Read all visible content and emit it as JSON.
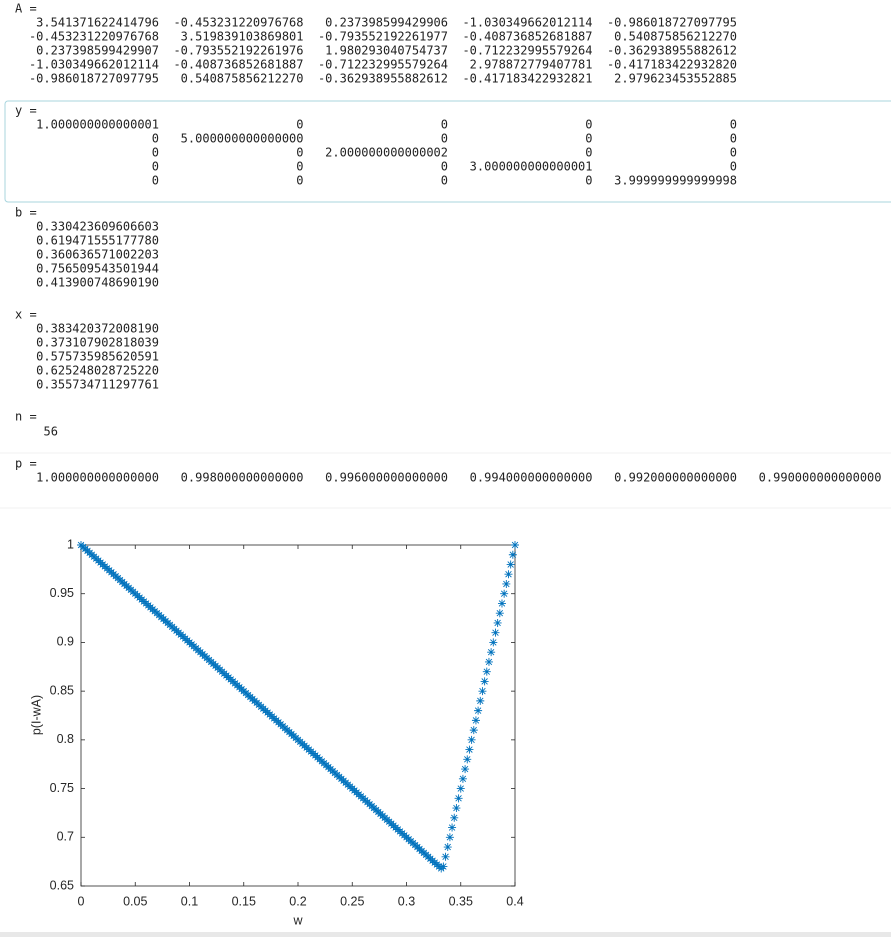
{
  "outputs": [
    {
      "label": "A =",
      "rows": [
        [
          "3.541371622414796",
          "-0.453231220976768",
          "0.237398599429906",
          "-1.030349662012114",
          "-0.986018727097795"
        ],
        [
          "-0.453231220976768",
          "3.519839103869801",
          "-0.793552192261977",
          "-0.408736852681887",
          "0.540875856212270"
        ],
        [
          "0.237398599429907",
          "-0.793552192261976",
          "1.980293040754737",
          "-0.712232995579264",
          "-0.362938955882612"
        ],
        [
          "-1.030349662012114",
          "-0.408736852681887",
          "-0.712232995579264",
          "2.978872779407781",
          "-0.417183422932820"
        ],
        [
          "-0.986018727097795",
          "0.540875856212270",
          "-0.362938955882612",
          "-0.417183422932821",
          "2.979623453552885"
        ]
      ]
    },
    {
      "label": "y =",
      "rows": [
        [
          "1.000000000000001",
          "0",
          "0",
          "0",
          "0"
        ],
        [
          "0",
          "5.000000000000000",
          "0",
          "0",
          "0"
        ],
        [
          "0",
          "0",
          "2.000000000000002",
          "0",
          "0"
        ],
        [
          "0",
          "0",
          "0",
          "3.000000000000001",
          "0"
        ],
        [
          "0",
          "0",
          "0",
          "0",
          "3.999999999999998"
        ]
      ]
    },
    {
      "label": "b =",
      "rows": [
        [
          "0.330423609606603"
        ],
        [
          "0.619471555177780"
        ],
        [
          "0.360636571002203"
        ],
        [
          "0.756509543501944"
        ],
        [
          "0.413900748690190"
        ]
      ]
    },
    {
      "label": "x =",
      "rows": [
        [
          "0.383420372008190"
        ],
        [
          "0.373107902818039"
        ],
        [
          "0.575735985620591"
        ],
        [
          "0.625248028725220"
        ],
        [
          "0.355734711297761"
        ]
      ]
    },
    {
      "label": "n =",
      "rows": [
        [
          "56"
        ]
      ]
    },
    {
      "label": "p =",
      "rows": [
        [
          "1.000000000000000",
          "0.998000000000000",
          "0.996000000000000",
          "0.994000000000000",
          "0.992000000000000",
          "0.990000000000000"
        ]
      ]
    }
  ],
  "chart_data": {
    "type": "scatter",
    "x_label": "w",
    "y_label": "p(I-wA)",
    "color": "#0072bd",
    "xlim": [
      0,
      0.4
    ],
    "xticks": [
      0,
      0.05,
      0.1,
      0.15,
      0.2,
      0.25,
      0.3,
      0.35,
      0.4
    ],
    "ylim": [
      0.65,
      1
    ],
    "yticks": [
      0.65,
      0.7,
      0.75,
      0.8,
      0.85,
      0.9,
      0.95,
      1
    ],
    "x": [
      0,
      0.002,
      0.004,
      0.006,
      0.008,
      0.01,
      0.012,
      0.014,
      0.016,
      0.018,
      0.02,
      0.022,
      0.024,
      0.026,
      0.028,
      0.03,
      0.032,
      0.034,
      0.036,
      0.038,
      0.04,
      0.042,
      0.044,
      0.046,
      0.048,
      0.05,
      0.052,
      0.054,
      0.056,
      0.058,
      0.06,
      0.062,
      0.064,
      0.066,
      0.068,
      0.07,
      0.072,
      0.074,
      0.076,
      0.078,
      0.08,
      0.082,
      0.084,
      0.086,
      0.088,
      0.09,
      0.092,
      0.094,
      0.096,
      0.098,
      0.1,
      0.102,
      0.104,
      0.106,
      0.108,
      0.11,
      0.112,
      0.114,
      0.116,
      0.118,
      0.12,
      0.122,
      0.124,
      0.126,
      0.128,
      0.13,
      0.132,
      0.134,
      0.136,
      0.138,
      0.14,
      0.142,
      0.144,
      0.146,
      0.148,
      0.15,
      0.152,
      0.154,
      0.156,
      0.158,
      0.16,
      0.162,
      0.164,
      0.166,
      0.168,
      0.17,
      0.172,
      0.174,
      0.176,
      0.178,
      0.18,
      0.182,
      0.184,
      0.186,
      0.188,
      0.19,
      0.192,
      0.194,
      0.196,
      0.198,
      0.2,
      0.202,
      0.204,
      0.206,
      0.208,
      0.21,
      0.212,
      0.214,
      0.216,
      0.218,
      0.22,
      0.222,
      0.224,
      0.226,
      0.228,
      0.23,
      0.232,
      0.234,
      0.236,
      0.238,
      0.24,
      0.242,
      0.244,
      0.246,
      0.248,
      0.25,
      0.252,
      0.254,
      0.256,
      0.258,
      0.26,
      0.262,
      0.264,
      0.266,
      0.268,
      0.27,
      0.272,
      0.274,
      0.276,
      0.278,
      0.28,
      0.282,
      0.284,
      0.286,
      0.288,
      0.29,
      0.292,
      0.294,
      0.296,
      0.298,
      0.3,
      0.302,
      0.304,
      0.306,
      0.308,
      0.31,
      0.312,
      0.314,
      0.316,
      0.318,
      0.32,
      0.322,
      0.324,
      0.326,
      0.328,
      0.33,
      0.332,
      0.334,
      0.336,
      0.338,
      0.34,
      0.342,
      0.344,
      0.346,
      0.348,
      0.35,
      0.352,
      0.354,
      0.356,
      0.358,
      0.36,
      0.362,
      0.364,
      0.366,
      0.368,
      0.37,
      0.372,
      0.374,
      0.376,
      0.378,
      0.38,
      0.382,
      0.384,
      0.386,
      0.388,
      0.39,
      0.392,
      0.394,
      0.396,
      0.398,
      0.4
    ],
    "values": [
      1,
      0.998,
      0.996,
      0.994,
      0.992,
      0.99,
      0.988,
      0.986,
      0.984,
      0.982,
      0.98,
      0.978,
      0.976,
      0.974,
      0.972,
      0.97,
      0.968,
      0.966,
      0.964,
      0.962,
      0.96,
      0.958,
      0.956,
      0.954,
      0.952,
      0.95,
      0.948,
      0.946,
      0.944,
      0.942,
      0.94,
      0.938,
      0.936,
      0.934,
      0.932,
      0.93,
      0.928,
      0.926,
      0.924,
      0.922,
      0.92,
      0.918,
      0.916,
      0.914,
      0.912,
      0.91,
      0.908,
      0.906,
      0.904,
      0.902,
      0.9,
      0.898,
      0.896,
      0.894,
      0.892,
      0.89,
      0.888,
      0.886,
      0.884,
      0.882,
      0.88,
      0.878,
      0.876,
      0.874,
      0.872,
      0.87,
      0.868,
      0.866,
      0.864,
      0.862,
      0.86,
      0.858,
      0.856,
      0.854,
      0.852,
      0.85,
      0.848,
      0.846,
      0.844,
      0.842,
      0.84,
      0.838,
      0.836,
      0.834,
      0.832,
      0.83,
      0.828,
      0.826,
      0.824,
      0.822,
      0.82,
      0.818,
      0.816,
      0.814,
      0.812,
      0.81,
      0.808,
      0.806,
      0.804,
      0.802,
      0.8,
      0.798,
      0.796,
      0.794,
      0.792,
      0.79,
      0.788,
      0.786,
      0.784,
      0.782,
      0.78,
      0.778,
      0.776,
      0.774,
      0.772,
      0.77,
      0.768,
      0.766,
      0.764,
      0.762,
      0.76,
      0.758,
      0.756,
      0.754,
      0.752,
      0.75,
      0.748,
      0.746,
      0.744,
      0.742,
      0.74,
      0.738,
      0.736,
      0.734,
      0.732,
      0.73,
      0.728,
      0.726,
      0.724,
      0.722,
      0.72,
      0.718,
      0.716,
      0.714,
      0.712,
      0.71,
      0.708,
      0.706,
      0.704,
      0.702,
      0.7,
      0.698,
      0.696,
      0.694,
      0.692,
      0.69,
      0.688,
      0.686,
      0.684,
      0.682,
      0.68,
      0.678,
      0.676,
      0.674,
      0.672,
      0.67,
      0.668,
      0.67,
      0.68,
      0.69,
      0.7,
      0.71,
      0.72,
      0.73,
      0.74,
      0.75,
      0.76,
      0.77,
      0.78,
      0.79,
      0.8,
      0.81,
      0.82,
      0.83,
      0.84,
      0.85,
      0.86,
      0.87,
      0.88,
      0.89,
      0.9,
      0.91,
      0.92,
      0.93,
      0.94,
      0.95,
      0.96,
      0.97,
      0.98,
      0.99,
      1
    ]
  }
}
